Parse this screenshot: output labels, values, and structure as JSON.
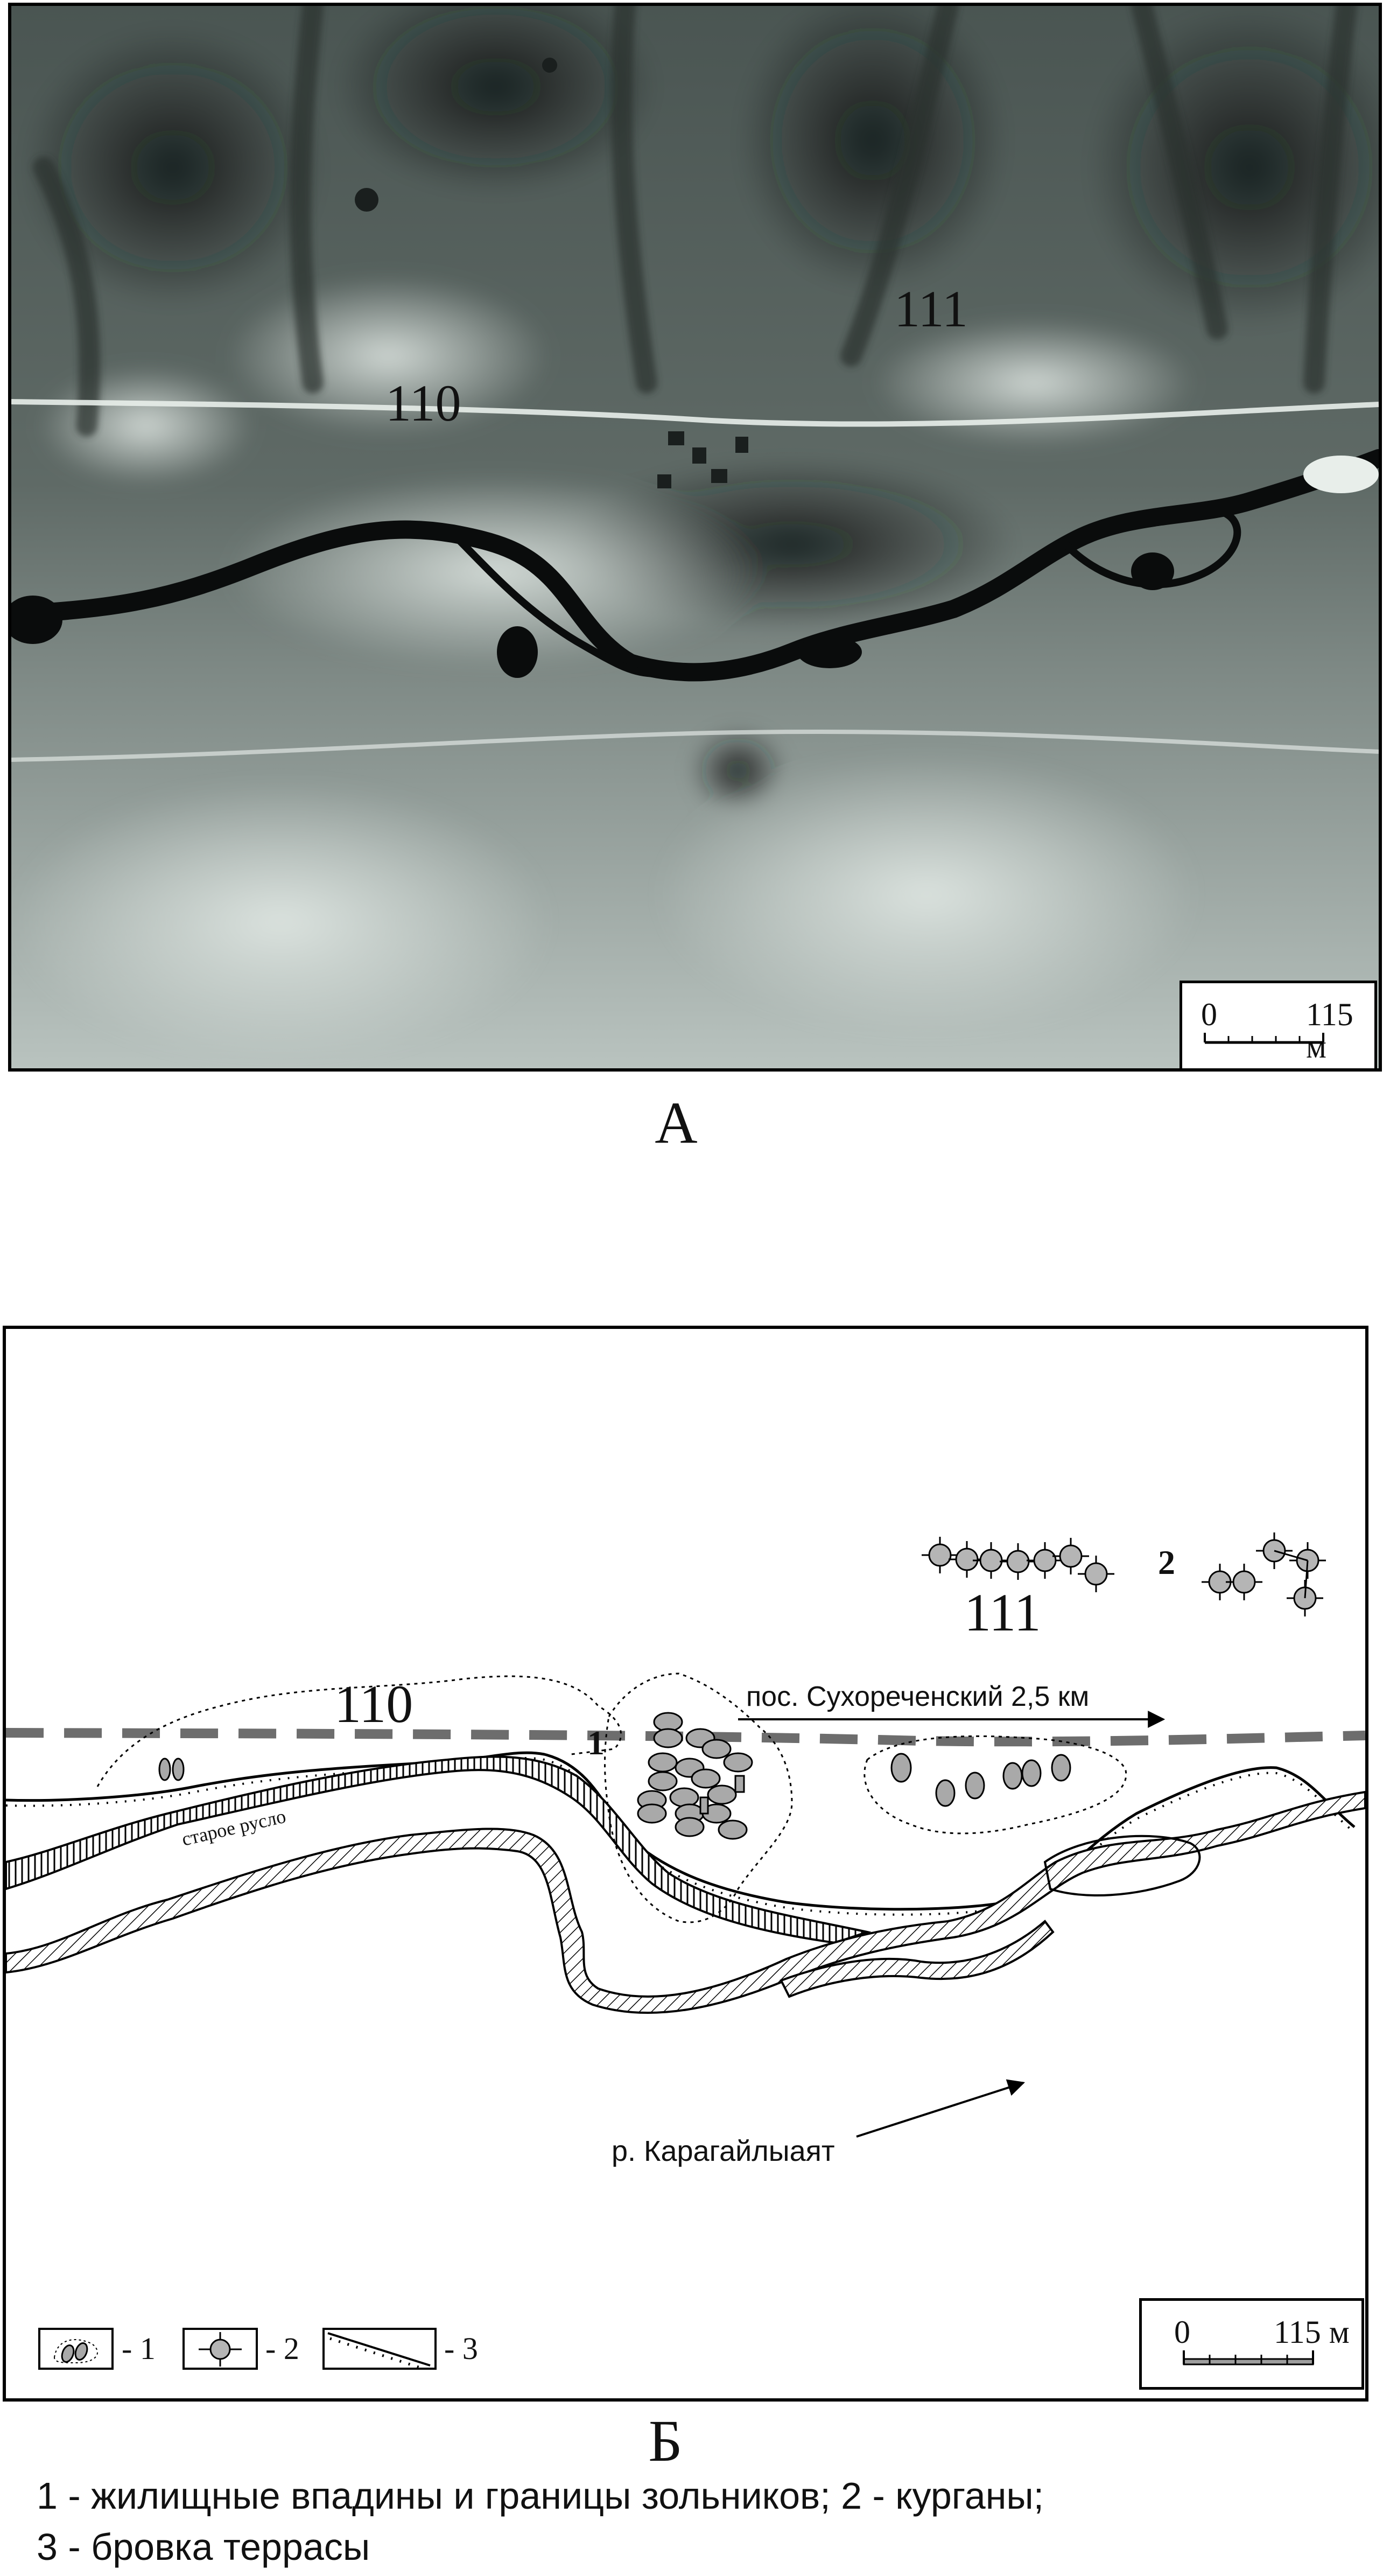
{
  "panel_a": {
    "label": "А",
    "site_labels": [
      "110",
      "111"
    ],
    "scale": {
      "start": "0",
      "end": "115 м"
    }
  },
  "panel_b": {
    "label": "Б",
    "site_labels": {
      "site_110": "110",
      "site_111": "111",
      "cluster_1": "1",
      "cluster_2": "2"
    },
    "annotations": {
      "settlement_direction": "пос. Сухореченский 2,5 км",
      "old_channel": "старое русло",
      "river": "р. Карагайлыаят"
    },
    "scale": {
      "start": "0",
      "end": "115 м"
    },
    "legend": [
      {
        "icon": "dwelling-depression-icon",
        "text": "- 1"
      },
      {
        "icon": "kurgan-icon",
        "text": "- 2"
      },
      {
        "icon": "terrace-edge-icon",
        "text": "- 3"
      }
    ]
  },
  "caption": {
    "line1": "1 - жилищные впадины и границы зольников; 2 - курганы;",
    "line2": "3 - бровка террасы"
  },
  "colors": {
    "photo_dark": "#1a1f1e",
    "photo_light": "#d9e0dc",
    "depression_fill": "#a9a9a9",
    "road_dash": "#6d6d6d",
    "outline": "#000000"
  }
}
